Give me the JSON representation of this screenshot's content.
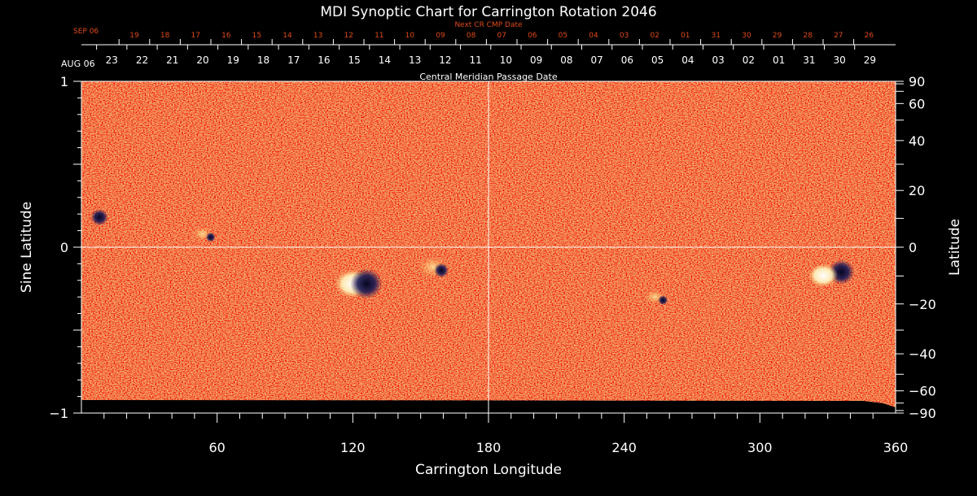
{
  "chart_data": {
    "type": "heatmap",
    "title": "MDI Synoptic Chart for Carrington Rotation 2046",
    "xlabel": "Carrington Longitude",
    "ylabel_left": "Sine Latitude",
    "ylabel_right": "Latitude",
    "xlim": [
      0,
      360
    ],
    "ylim": [
      -1,
      1
    ],
    "x_ticks": [
      60,
      120,
      180,
      240,
      300,
      360
    ],
    "y_left_ticks": [
      {
        "value": 1,
        "label": "1"
      },
      {
        "value": 0,
        "label": "0"
      },
      {
        "value": -1,
        "label": "−1"
      }
    ],
    "y_right_ticks": [
      90,
      60,
      40,
      20,
      0,
      -20,
      -40,
      -60,
      -90
    ],
    "top_axis_current": {
      "caption": "Central Meridian Passage Date",
      "start_label": "AUG 06",
      "dates": [
        "23",
        "22",
        "21",
        "20",
        "19",
        "18",
        "17",
        "16",
        "15",
        "14",
        "13",
        "12",
        "11",
        "10",
        "09",
        "08",
        "07",
        "06",
        "05",
        "04",
        "03",
        "02",
        "01",
        "31",
        "30",
        "29"
      ]
    },
    "top_axis_next": {
      "caption": "Next CR CMP Date",
      "start_label": "SEP 06",
      "dates": [
        "19",
        "18",
        "17",
        "16",
        "15",
        "14",
        "13",
        "12",
        "11",
        "10",
        "09",
        "08",
        "07",
        "06",
        "05",
        "04",
        "03",
        "02",
        "01",
        "31",
        "30",
        "29",
        "28",
        "27",
        "26"
      ]
    },
    "active_regions": [
      {
        "lon": 120,
        "sinlat": -0.22,
        "polarity": "positive",
        "strength": "strong"
      },
      {
        "lon": 126,
        "sinlat": -0.22,
        "polarity": "negative",
        "strength": "strong"
      },
      {
        "lon": 157,
        "sinlat": -0.12,
        "polarity": "mixed",
        "strength": "medium"
      },
      {
        "lon": 55,
        "sinlat": 0.08,
        "polarity": "mixed",
        "strength": "weak"
      },
      {
        "lon": 8,
        "sinlat": 0.18,
        "polarity": "negative",
        "strength": "weak"
      },
      {
        "lon": 336,
        "sinlat": -0.15,
        "polarity": "negative",
        "strength": "medium"
      },
      {
        "lon": 328,
        "sinlat": -0.17,
        "polarity": "positive",
        "strength": "medium"
      },
      {
        "lon": 255,
        "sinlat": -0.3,
        "polarity": "mixed",
        "strength": "weak"
      }
    ],
    "colors": {
      "background": "#000000",
      "field_base": "#d9450f",
      "positive": "#ffffff",
      "negative": "#1a1a55",
      "next_axis_text": "#e04a1a",
      "axis": "#ffffff"
    }
  }
}
